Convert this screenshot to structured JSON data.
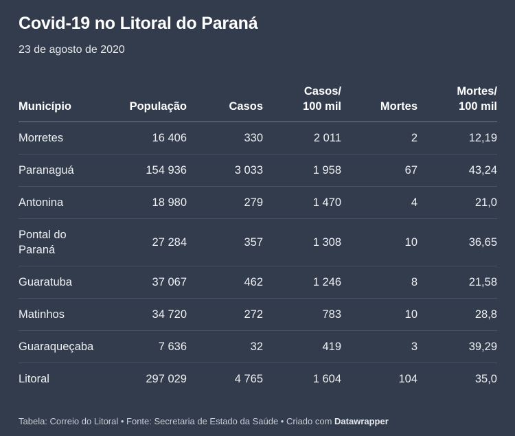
{
  "title": "Covid-19 no Litoral do Paraná",
  "subtitle": "23 de agosto de 2020",
  "footer": {
    "prefix": "Tabela: Correio do Litoral • Fonte: Secretaria de Estado da Saúde • Criado com ",
    "brand": "Datawrapper"
  },
  "chart_data": {
    "type": "table",
    "columns": [
      "Município",
      "População",
      "Casos",
      "Casos/ 100 mil",
      "Mortes",
      "Mortes/ 100 mil"
    ],
    "header_lines": [
      [
        "Município"
      ],
      [
        "População"
      ],
      [
        "Casos"
      ],
      [
        "Casos/",
        "100 mil"
      ],
      [
        "Mortes"
      ],
      [
        "Mortes/",
        "100 mil"
      ]
    ],
    "rows": [
      [
        "Morretes",
        "16 406",
        "330",
        "2 011",
        "2",
        "12,19"
      ],
      [
        "Paranaguá",
        "154 936",
        "3 033",
        "1 958",
        "67",
        "43,24"
      ],
      [
        "Antonina",
        "18 980",
        "279",
        "1 470",
        "4",
        "21,0"
      ],
      [
        "Pontal do Paraná",
        "27 284",
        "357",
        "1 308",
        "10",
        "36,65"
      ],
      [
        "Guaratuba",
        "37 067",
        "462",
        "1 246",
        "8",
        "21,58"
      ],
      [
        "Matinhos",
        "34 720",
        "272",
        "783",
        "10",
        "28,8"
      ],
      [
        "Guaraqueçaba",
        "7 636",
        "32",
        "419",
        "3",
        "39,29"
      ],
      [
        "Litoral",
        "297 029",
        "4 765",
        "1 604",
        "104",
        "35,0"
      ]
    ],
    "values": {
      "populacao": [
        16406,
        154936,
        18980,
        27284,
        37067,
        34720,
        7636,
        297029
      ],
      "casos": [
        330,
        3033,
        279,
        357,
        462,
        272,
        32,
        4765
      ],
      "casos_100mil": [
        2011,
        1958,
        1470,
        1308,
        1246,
        783,
        419,
        1604
      ],
      "mortes": [
        2,
        67,
        4,
        10,
        8,
        10,
        3,
        104
      ],
      "mortes_100mil": [
        12.19,
        43.24,
        21.0,
        36.65,
        21.58,
        28.8,
        39.29,
        35.0
      ]
    }
  }
}
